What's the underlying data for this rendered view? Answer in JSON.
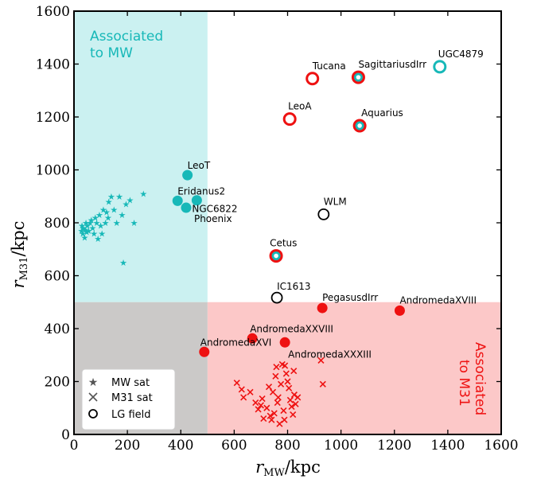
{
  "chart_data": {
    "type": "scatter",
    "xlabel": "r_MW/kpc",
    "ylabel": "r_M31/kpc",
    "xlim": [
      0,
      1600
    ],
    "ylim": [
      0,
      1600
    ],
    "xticks": [
      0,
      200,
      400,
      600,
      800,
      1000,
      1200,
      1400,
      1600
    ],
    "yticks": [
      0,
      200,
      400,
      600,
      800,
      1000,
      1200,
      1400,
      1600
    ],
    "colors": {
      "mw": "#17b8b8",
      "m31": "#ee1111",
      "mw_region": "#cbf1f1",
      "m31_region": "#fcc8c8",
      "both_region": "#cbc9c8"
    },
    "regions": {
      "mw": {
        "label_line1": "Associated",
        "label_line2": "to MW",
        "x_max": 500,
        "y_min": 500
      },
      "m31": {
        "label_line1": "Associated",
        "label_line2": "to M31",
        "x_min": 500,
        "y_max": 500
      }
    },
    "legend": {
      "position": "lower-left",
      "entries": [
        {
          "marker": "star",
          "label": "MW sat"
        },
        {
          "marker": "x",
          "label": "M31 sat"
        },
        {
          "marker": "ring",
          "label": "LG field"
        }
      ]
    },
    "mw_satellites": [
      [
        28,
        770
      ],
      [
        30,
        790
      ],
      [
        33,
        760
      ],
      [
        35,
        780
      ],
      [
        40,
        745
      ],
      [
        42,
        775
      ],
      [
        45,
        800
      ],
      [
        48,
        765
      ],
      [
        50,
        790
      ],
      [
        55,
        770
      ],
      [
        60,
        800
      ],
      [
        65,
        810
      ],
      [
        70,
        780
      ],
      [
        75,
        760
      ],
      [
        80,
        820
      ],
      [
        85,
        800
      ],
      [
        90,
        740
      ],
      [
        95,
        830
      ],
      [
        100,
        790
      ],
      [
        105,
        760
      ],
      [
        110,
        850
      ],
      [
        118,
        800
      ],
      [
        122,
        840
      ],
      [
        128,
        820
      ],
      [
        130,
        880
      ],
      [
        140,
        900
      ],
      [
        150,
        850
      ],
      [
        160,
        800
      ],
      [
        170,
        900
      ],
      [
        180,
        830
      ],
      [
        195,
        870
      ],
      [
        210,
        885
      ],
      [
        225,
        800
      ],
      [
        260,
        910
      ],
      [
        185,
        650
      ]
    ],
    "m31_satellites": [
      [
        610,
        195
      ],
      [
        628,
        170
      ],
      [
        635,
        140
      ],
      [
        660,
        160
      ],
      [
        680,
        120
      ],
      [
        690,
        95
      ],
      [
        700,
        110
      ],
      [
        705,
        135
      ],
      [
        710,
        60
      ],
      [
        722,
        100
      ],
      [
        730,
        180
      ],
      [
        735,
        70
      ],
      [
        740,
        55
      ],
      [
        745,
        160
      ],
      [
        750,
        80
      ],
      [
        755,
        220
      ],
      [
        758,
        255
      ],
      [
        762,
        120
      ],
      [
        765,
        140
      ],
      [
        770,
        40
      ],
      [
        775,
        190
      ],
      [
        780,
        265
      ],
      [
        785,
        90
      ],
      [
        788,
        55
      ],
      [
        790,
        260
      ],
      [
        795,
        230
      ],
      [
        800,
        200
      ],
      [
        805,
        175
      ],
      [
        810,
        130
      ],
      [
        815,
        105
      ],
      [
        820,
        75
      ],
      [
        823,
        240
      ],
      [
        825,
        150
      ],
      [
        830,
        115
      ],
      [
        838,
        140
      ],
      [
        925,
        280
      ],
      [
        932,
        190
      ]
    ],
    "named_galaxies": [
      {
        "name": "LeoT",
        "x": 425,
        "y": 980,
        "style": "filled-mw"
      },
      {
        "name": "Eridanus2",
        "x": 388,
        "y": 883,
        "style": "filled-mw"
      },
      {
        "name": "NGC6822",
        "x": 460,
        "y": 885,
        "style": "filled-mw"
      },
      {
        "name": "Phoenix",
        "x": 420,
        "y": 857,
        "style": "filled-mw"
      },
      {
        "name": "Tucana",
        "x": 893,
        "y": 1345,
        "style": "ring-m31"
      },
      {
        "name": "SagittariusdIrr",
        "x": 1065,
        "y": 1350,
        "style": "ring-m31-dot-mw"
      },
      {
        "name": "UGC4879",
        "x": 1370,
        "y": 1390,
        "style": "ring-mw"
      },
      {
        "name": "LeoA",
        "x": 808,
        "y": 1192,
        "style": "ring-m31"
      },
      {
        "name": "Aquarius",
        "x": 1070,
        "y": 1167,
        "style": "ring-m31-dot-mw"
      },
      {
        "name": "WLM",
        "x": 935,
        "y": 832,
        "style": "ring-black"
      },
      {
        "name": "Cetus",
        "x": 757,
        "y": 675,
        "style": "ring-m31-dot-mw"
      },
      {
        "name": "IC1613",
        "x": 760,
        "y": 517,
        "style": "ring-black"
      },
      {
        "name": "PegasusdIrr",
        "x": 930,
        "y": 478,
        "style": "filled-m31"
      },
      {
        "name": "AndromedaXVIII",
        "x": 1220,
        "y": 468,
        "style": "filled-m31"
      },
      {
        "name": "AndromedaXXVIII",
        "x": 668,
        "y": 363,
        "style": "filled-m31"
      },
      {
        "name": "AndromedaXVI",
        "x": 488,
        "y": 312,
        "style": "filled-m31"
      },
      {
        "name": "AndromedaXXXIII",
        "x": 790,
        "y": 348,
        "style": "filled-m31"
      }
    ]
  }
}
